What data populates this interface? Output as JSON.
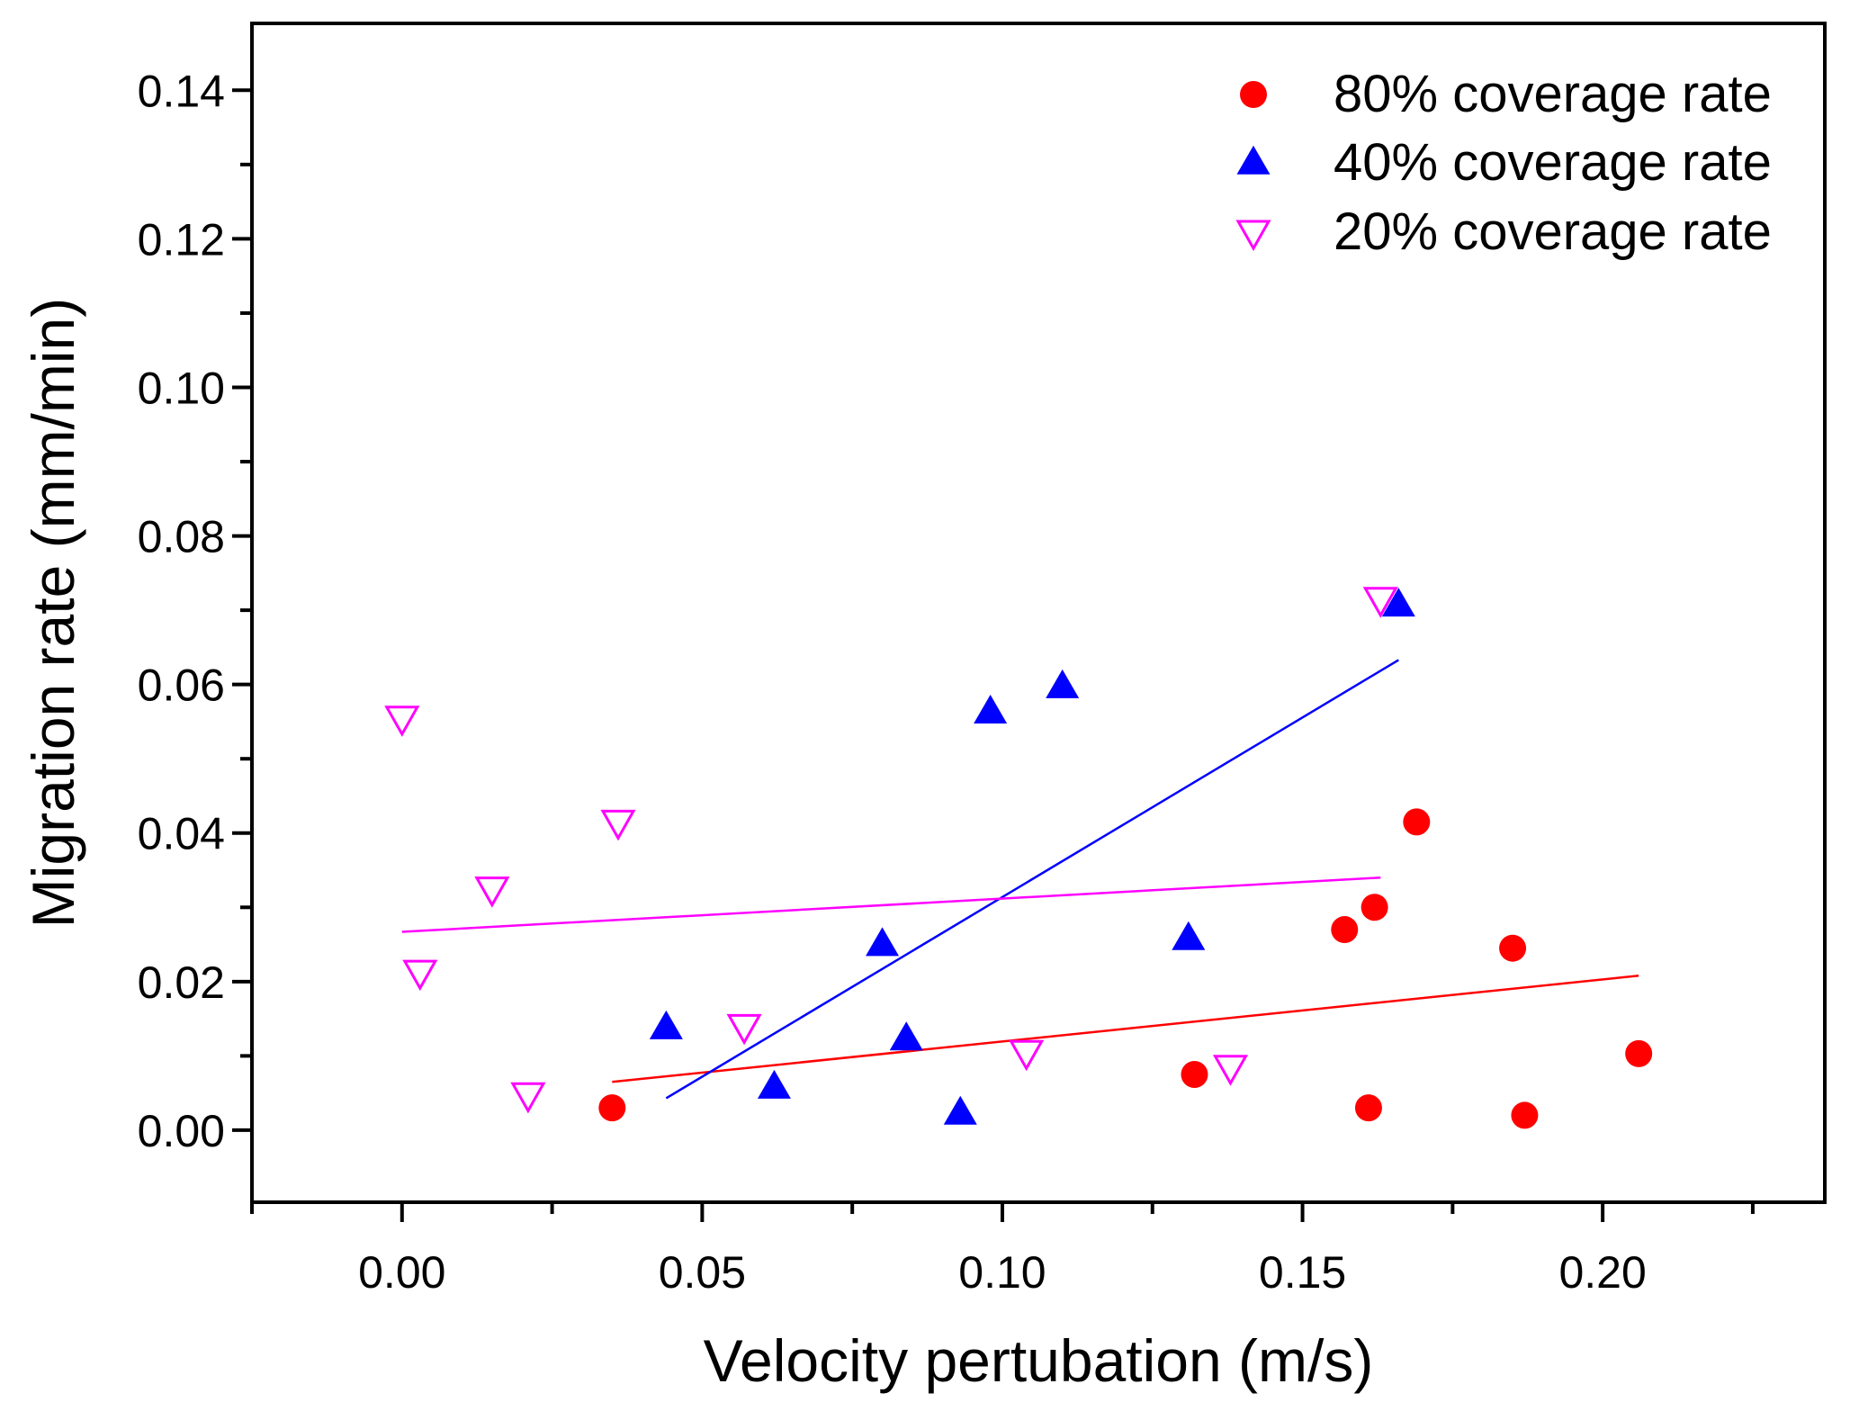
{
  "chart_data": {
    "type": "scatter",
    "title": "",
    "xlabel": "Velocity pertubation (m/s)",
    "ylabel": "Migration rate (mm/min)",
    "xlim": [
      -0.025,
      0.237
    ],
    "ylim": [
      -0.0097,
      0.149
    ],
    "xticks": [
      0.0,
      0.05,
      0.1,
      0.15,
      0.2
    ],
    "xtick_labels": [
      "0.00",
      "0.05",
      "0.10",
      "0.15",
      "0.20"
    ],
    "yticks": [
      0.0,
      0.02,
      0.04,
      0.06,
      0.08,
      0.1,
      0.12,
      0.14
    ],
    "ytick_labels": [
      "0.00",
      "0.02",
      "0.04",
      "0.06",
      "0.08",
      "0.10",
      "0.12",
      "0.14"
    ],
    "grid": false,
    "legend_position": "top-right",
    "series": [
      {
        "name": "80% coverage rate",
        "color": "#ff0000",
        "marker": "circle",
        "x": [
          0.035,
          0.132,
          0.157,
          0.162,
          0.161,
          0.169,
          0.185,
          0.187,
          0.206
        ],
        "y": [
          0.003,
          0.0075,
          0.027,
          0.03,
          0.003,
          0.0415,
          0.0245,
          0.002,
          0.0103
        ],
        "fit": {
          "x": [
            0.035,
            0.206
          ],
          "y": [
            0.0065,
            0.0208
          ]
        }
      },
      {
        "name": "40% coverage rate",
        "color": "#0000ff",
        "marker": "triangle-up",
        "x": [
          0.044,
          0.062,
          0.08,
          0.084,
          0.093,
          0.098,
          0.11,
          0.131,
          0.166
        ],
        "y": [
          0.0138,
          0.0058,
          0.025,
          0.0123,
          0.0023,
          0.0563,
          0.0597,
          0.0258,
          0.0707
        ],
        "fit": {
          "x": [
            0.044,
            0.166
          ],
          "y": [
            0.0043,
            0.0633
          ]
        }
      },
      {
        "name": "20% coverage rate",
        "color": "#ff00ff",
        "marker": "triangle-down-open",
        "x": [
          0.0,
          0.003,
          0.015,
          0.021,
          0.036,
          0.057,
          0.104,
          0.138,
          0.163
        ],
        "y": [
          0.0555,
          0.0213,
          0.0325,
          0.0048,
          0.0415,
          0.014,
          0.0105,
          0.0085,
          0.0715
        ],
        "fit": {
          "x": [
            0.0,
            0.163
          ],
          "y": [
            0.0267,
            0.034
          ]
        }
      }
    ]
  }
}
